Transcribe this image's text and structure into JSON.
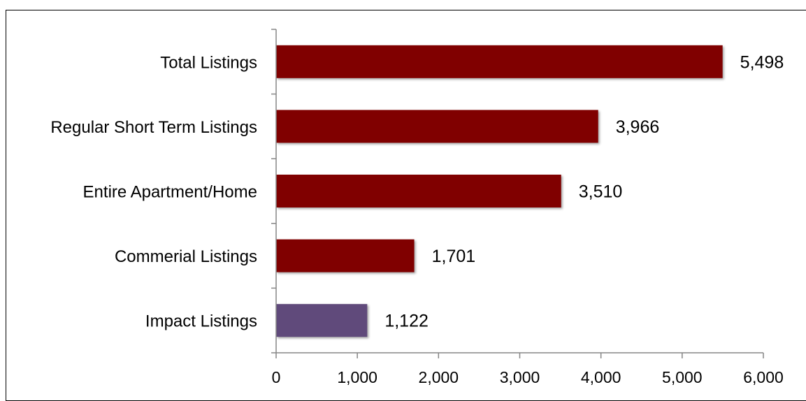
{
  "chart_data": {
    "type": "bar",
    "orientation": "horizontal",
    "title": "",
    "caption": "",
    "xlabel": "",
    "ylabel": "",
    "categories": [
      "Total Listings",
      "Regular Short Term Listings",
      "Entire Apartment/Home",
      "Commerial Listings",
      "Impact Listings"
    ],
    "values": [
      5498,
      3966,
      3510,
      1701,
      1122
    ],
    "value_labels": [
      "5,498",
      "3,966",
      "3,510",
      "1,701",
      "1,122"
    ],
    "bar_colors": [
      "#800000",
      "#800000",
      "#800000",
      "#800000",
      "#604a7b"
    ],
    "xlim": [
      0,
      6000
    ],
    "x_ticks": [
      0,
      1000,
      2000,
      3000,
      4000,
      5000,
      6000
    ],
    "x_tick_labels": [
      "0",
      "1,000",
      "2,000",
      "3,000",
      "4,000",
      "5,000",
      "6,000"
    ],
    "grid": false,
    "legend": "none"
  }
}
